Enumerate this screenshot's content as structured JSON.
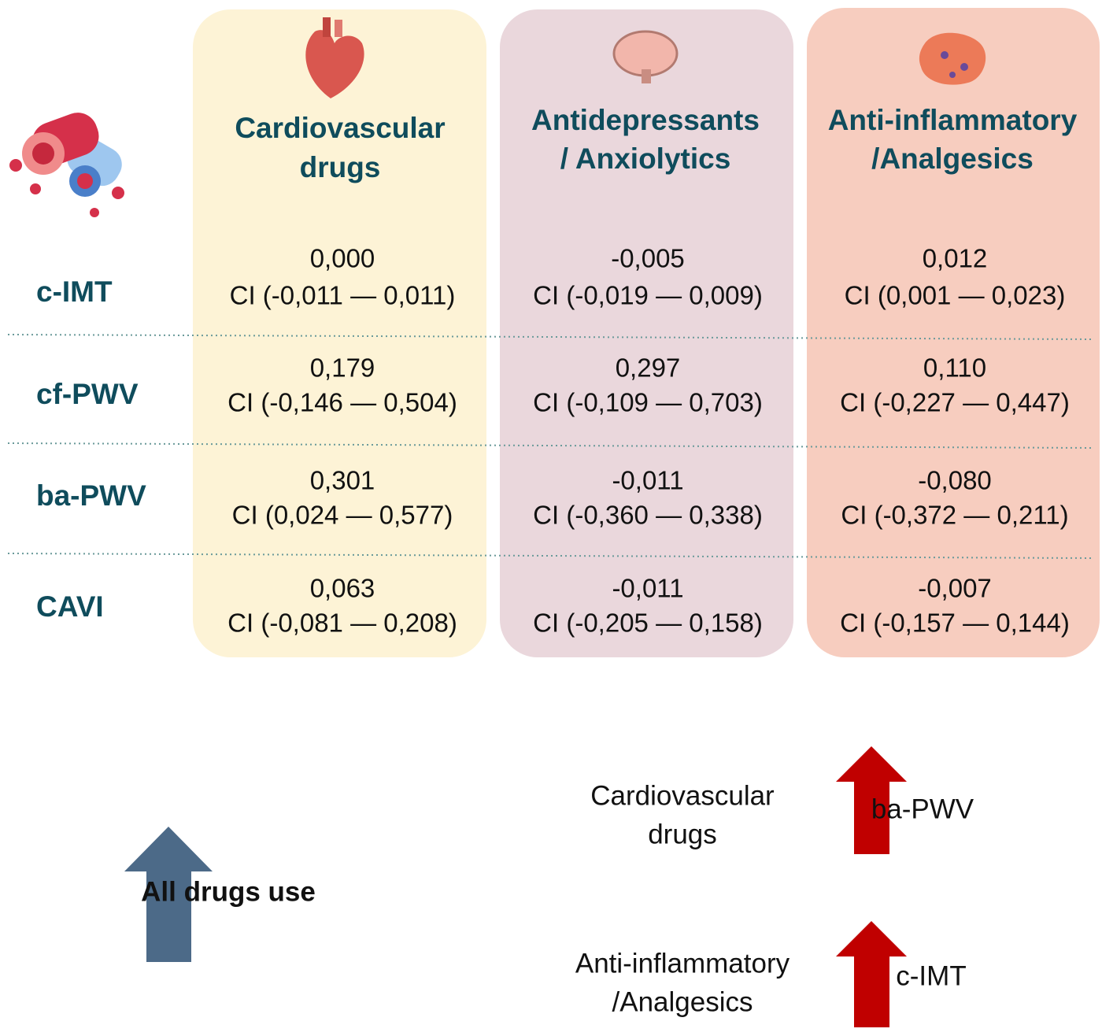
{
  "columns": [
    {
      "title": [
        "Cardiovascular",
        "drugs"
      ]
    },
    {
      "title": [
        "Antidepressants",
        "/ Anxiolytics"
      ]
    },
    {
      "title": [
        "Anti-inflammatory",
        "/Analgesics"
      ]
    }
  ],
  "rows": [
    {
      "label": "c-IMT",
      "cells": [
        {
          "value": "0,000",
          "ci": "CI (-0,011 — 0,011)"
        },
        {
          "value": "-0,005",
          "ci": "CI (-0,019 — 0,009)"
        },
        {
          "value": "0,012",
          "ci": "CI (0,001 — 0,023)"
        }
      ]
    },
    {
      "label": "cf-PWV",
      "cells": [
        {
          "value": "0,179",
          "ci": "CI (-0,146 — 0,504)"
        },
        {
          "value": "0,297",
          "ci": "CI (-0,109 — 0,703)"
        },
        {
          "value": "0,110",
          "ci": "CI (-0,227 — 0,447)"
        }
      ]
    },
    {
      "label": "ba-PWV",
      "cells": [
        {
          "value": "0,301",
          "ci": "CI (0,024 — 0,577)"
        },
        {
          "value": "-0,011",
          "ci": "CI (-0,360 — 0,338)"
        },
        {
          "value": "-0,080",
          "ci": "CI (-0,372 — 0,211)"
        }
      ]
    },
    {
      "label": "CAVI",
      "cells": [
        {
          "value": "0,063",
          "ci": "CI (-0,081 — 0,208)"
        },
        {
          "value": "-0,011",
          "ci": "CI (-0,205 — 0,158)"
        },
        {
          "value": "-0,007",
          "ci": "CI (-0,157 — 0,144)"
        }
      ]
    }
  ],
  "summary": {
    "label": "All drugs use",
    "findings": [
      {
        "drug": [
          "Cardiovascular",
          "drugs"
        ],
        "measure": "ba-PWV"
      },
      {
        "drug": [
          "Anti-inflammatory",
          "/Analgesics"
        ],
        "measure": "c-IMT"
      }
    ]
  }
}
